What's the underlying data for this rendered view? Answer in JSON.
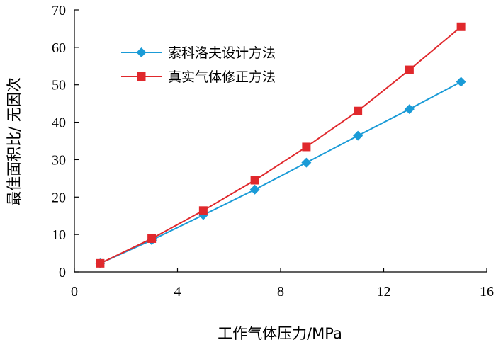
{
  "chart_data": {
    "type": "line",
    "title": "",
    "xlabel": "工作气体压力/MPa",
    "ylabel": "最佳面积比/ 无因次",
    "xlim": [
      0,
      16
    ],
    "ylim": [
      0,
      70
    ],
    "xticks": [
      0,
      4,
      8,
      12,
      16
    ],
    "yticks": [
      0,
      10,
      20,
      30,
      40,
      50,
      60,
      70
    ],
    "grid": false,
    "legend_position": "top-left",
    "series": [
      {
        "name": "索科洛夫设计方法",
        "color": "#1a9bd7",
        "marker": "diamond",
        "x": [
          1,
          3,
          5,
          7,
          9,
          11,
          13,
          15
        ],
        "y": [
          2.3,
          8.5,
          15.2,
          22.0,
          29.2,
          36.4,
          43.5,
          50.8
        ]
      },
      {
        "name": "真实气体修正方法",
        "color": "#e0282c",
        "marker": "square",
        "x": [
          1,
          3,
          5,
          7,
          9,
          11,
          13,
          15
        ],
        "y": [
          2.3,
          8.9,
          16.4,
          24.5,
          33.4,
          43.0,
          54.0,
          65.5
        ]
      }
    ]
  }
}
